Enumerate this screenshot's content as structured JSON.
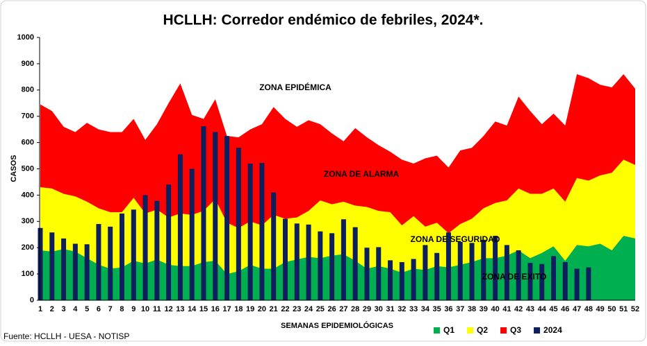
{
  "chart_data": {
    "type": "corridor",
    "title": "HCLLH: Corredor endémico de febriles, 2024*.",
    "y_label": "CASOS",
    "x_label": "SEMANAS EPIDEMIOLÓGICAS",
    "source": "Fuente: HCLLH - UESA - NOTISP",
    "annotations": [
      "ZONA EPIDÉMICA",
      "ZONA DE ALARMA",
      "ZONA DE SEGURIDAD",
      "ZONA DE EXITO"
    ],
    "categories": [
      1,
      2,
      3,
      4,
      5,
      6,
      7,
      8,
      9,
      10,
      11,
      12,
      13,
      14,
      15,
      16,
      17,
      18,
      19,
      20,
      21,
      22,
      23,
      24,
      25,
      26,
      27,
      28,
      29,
      30,
      31,
      32,
      33,
      34,
      35,
      36,
      37,
      38,
      39,
      40,
      41,
      42,
      43,
      44,
      45,
      46,
      47,
      48,
      49,
      50,
      51,
      52
    ],
    "ylim": [
      0,
      1000
    ],
    "yticks": [
      0,
      100,
      200,
      300,
      400,
      500,
      600,
      700,
      800,
      900,
      1000
    ],
    "series": [
      {
        "name": "Q1",
        "kind": "area",
        "color": "#00b050",
        "values": [
          190,
          185,
          195,
          185,
          160,
          135,
          120,
          125,
          150,
          140,
          155,
          135,
          130,
          130,
          145,
          150,
          100,
          110,
          135,
          120,
          120,
          145,
          155,
          165,
          160,
          170,
          175,
          150,
          120,
          130,
          120,
          105,
          120,
          115,
          130,
          125,
          135,
          145,
          160,
          160,
          170,
          190,
          160,
          180,
          205,
          150,
          210,
          205,
          215,
          190,
          245,
          235
        ]
      },
      {
        "name": "Q2",
        "kind": "area",
        "color": "#ffff00",
        "values": [
          430,
          425,
          405,
          395,
          375,
          350,
          335,
          335,
          390,
          330,
          345,
          315,
          330,
          325,
          340,
          385,
          295,
          275,
          300,
          285,
          325,
          310,
          315,
          340,
          380,
          365,
          375,
          360,
          355,
          340,
          335,
          285,
          320,
          280,
          295,
          255,
          290,
          310,
          350,
          370,
          380,
          425,
          405,
          405,
          425,
          375,
          465,
          455,
          475,
          485,
          535,
          515
        ]
      },
      {
        "name": "Q3",
        "kind": "area",
        "color": "#ff0000",
        "values": [
          745,
          720,
          660,
          640,
          675,
          650,
          640,
          640,
          690,
          610,
          670,
          750,
          825,
          705,
          690,
          765,
          625,
          620,
          650,
          670,
          735,
          690,
          660,
          685,
          670,
          635,
          605,
          655,
          620,
          590,
          565,
          535,
          520,
          540,
          550,
          505,
          570,
          580,
          625,
          680,
          665,
          775,
          720,
          670,
          710,
          665,
          860,
          845,
          820,
          810,
          860,
          805
        ]
      },
      {
        "name": "2024",
        "kind": "bar",
        "color": "#0d1f5c",
        "values": [
          275,
          258,
          235,
          215,
          213,
          290,
          280,
          330,
          345,
          400,
          378,
          440,
          555,
          500,
          662,
          640,
          625,
          580,
          520,
          522,
          410,
          310,
          292,
          288,
          262,
          255,
          308,
          278,
          200,
          202,
          152,
          145,
          157,
          210,
          180,
          258,
          222,
          218,
          230,
          245,
          210,
          190,
          142,
          138,
          168,
          145,
          120,
          125,
          null,
          null,
          null,
          null
        ]
      }
    ]
  }
}
